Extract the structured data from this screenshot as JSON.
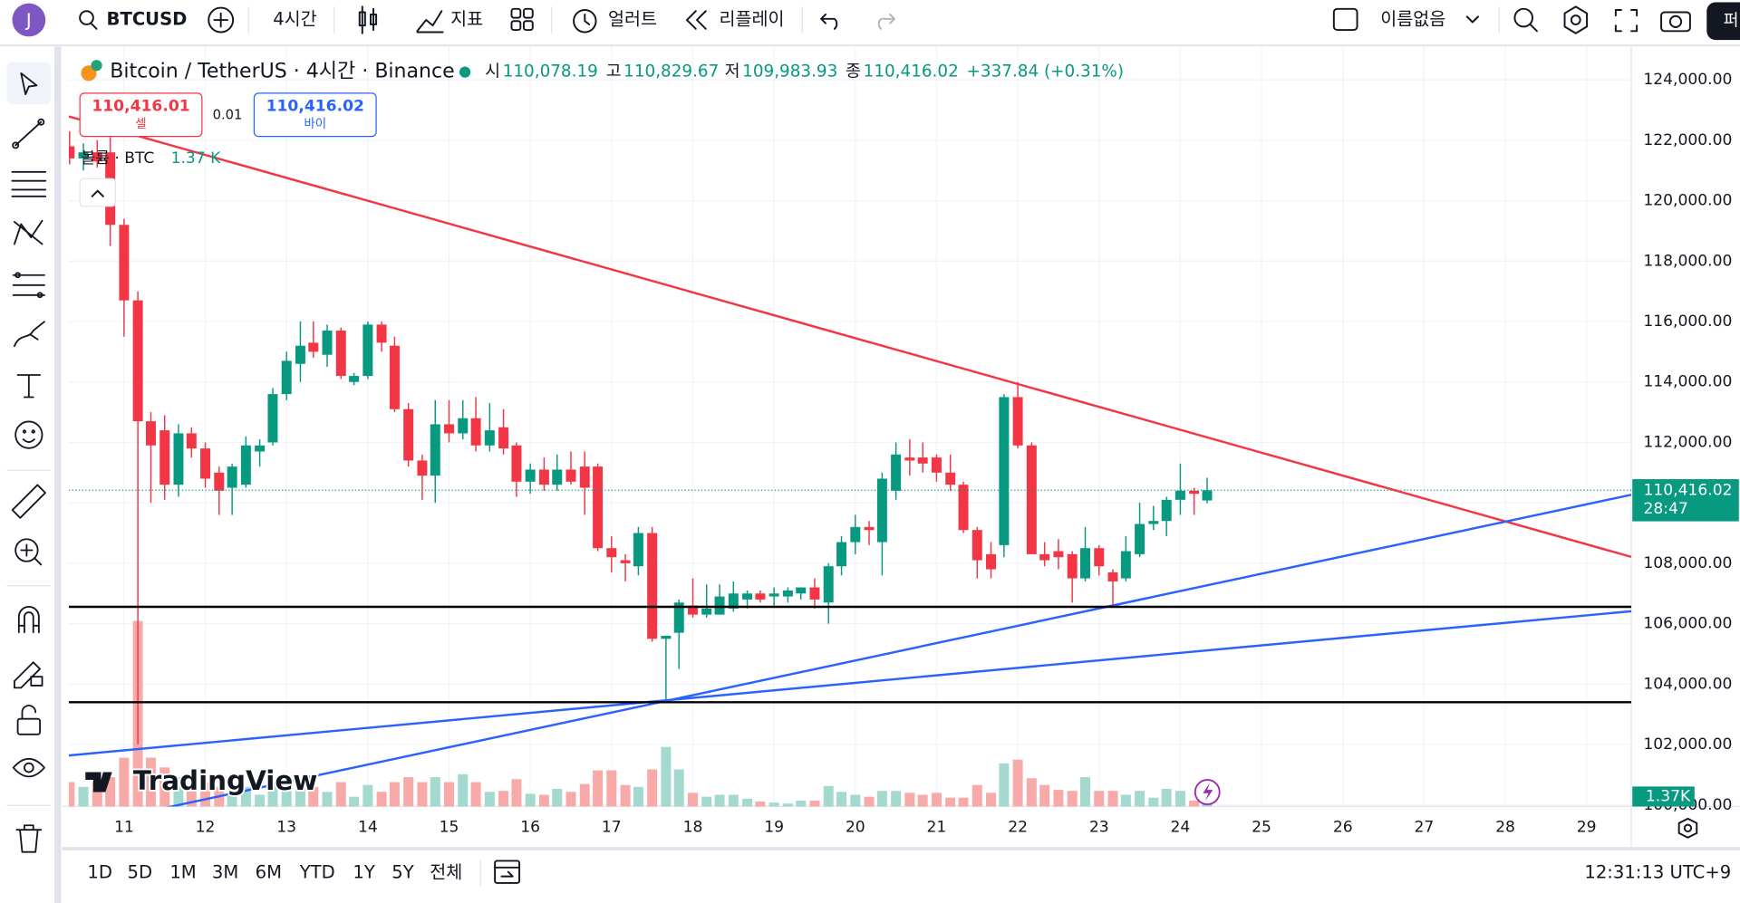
{
  "toolbar": {
    "avatar": "J",
    "symbol": "BTCUSD",
    "interval": "4시간",
    "indicators": "지표",
    "alerts": "얼러트",
    "replay": "리플레이",
    "layout_name": "이름없음",
    "publish": "퍼"
  },
  "chart_header": {
    "title": "Bitcoin / TetherUS · 4시간 · Binance",
    "open_label": "시",
    "open": "110,078.19",
    "high_label": "고",
    "high": "110,829.67",
    "low_label": "저",
    "low": "109,983.93",
    "close_label": "종",
    "close": "110,416.02",
    "change": "+337.84 (+0.31%)",
    "sell_price": "110,416.01",
    "sell": "셀",
    "spread": "0.01",
    "buy_price": "110,416.02",
    "buy": "바이",
    "volume_title": "볼륨 · BTC",
    "volume_value": "1.37 K",
    "logo": "TradingView"
  },
  "bottom_bar": {
    "ranges": [
      "1D",
      "5D",
      "1M",
      "3M",
      "6M",
      "YTD",
      "1Y",
      "5Y",
      "전체"
    ],
    "clock": "12:31:13 UTC+9"
  },
  "chart_data": {
    "type": "candlestick",
    "up_color": "#089981",
    "down_color": "#f23645",
    "volume_up_color": "#a3d9cf",
    "volume_down_color": "#f8aaa8",
    "grid": true,
    "x": [
      10.33,
      10.5,
      10.67,
      10.83,
      11,
      11.17,
      11.33,
      11.5,
      11.67,
      11.83,
      12,
      12.17,
      12.33,
      12.5,
      12.67,
      12.83,
      13,
      13.17,
      13.33,
      13.5,
      13.67,
      13.83,
      14,
      14.17,
      14.33,
      14.5,
      14.67,
      14.83,
      15,
      15.17,
      15.33,
      15.5,
      15.67,
      15.83,
      16,
      16.17,
      16.33,
      16.5,
      16.67,
      16.83,
      17,
      17.17,
      17.33,
      17.5,
      17.67,
      17.83,
      18,
      18.17,
      18.33,
      18.5,
      18.67,
      18.83,
      19,
      19.17,
      19.33,
      19.5,
      19.67,
      19.83,
      20,
      20.17,
      20.33,
      20.5,
      20.67,
      20.83,
      21,
      21.17,
      21.33,
      21.5,
      21.67,
      21.83,
      22,
      22.17,
      22.33,
      22.5,
      22.67,
      22.83,
      23,
      23.17,
      23.33,
      23.5,
      23.67,
      23.83,
      24,
      24.17,
      24.33
    ],
    "open": [
      121800,
      121400,
      121600,
      121600,
      119200,
      116700,
      112700,
      112400,
      110600,
      112300,
      111800,
      111000,
      110500,
      110600,
      111700,
      112000,
      113600,
      114600,
      115300,
      114900,
      115700,
      114000,
      114200,
      115900,
      115200,
      113100,
      111400,
      110900,
      112600,
      112300,
      112800,
      111900,
      112500,
      111900,
      110700,
      111100,
      110600,
      111100,
      111200,
      111200,
      108500,
      108100,
      107900,
      109000,
      105500,
      105700,
      106600,
      106300,
      106300,
      106500,
      106800,
      107000,
      106900,
      106900,
      107000,
      107200,
      106700,
      107900,
      108700,
      109200,
      108700,
      110400,
      111500,
      111500,
      111500,
      111000,
      110600,
      109100,
      108300,
      108600,
      113500,
      111900,
      108300,
      108400,
      108300,
      107500,
      108500,
      107700,
      107500,
      108300,
      109300,
      109400,
      110100,
      110400,
      110078.19
    ],
    "high": [
      122300,
      121900,
      122000,
      122100,
      119400,
      117000,
      113000,
      112900,
      112600,
      112500,
      112000,
      111200,
      111300,
      112200,
      112100,
      113800,
      115000,
      116000,
      116000,
      115900,
      115800,
      114300,
      116000,
      116000,
      115500,
      113300,
      111600,
      113400,
      113400,
      113400,
      113500,
      113300,
      113100,
      112000,
      111300,
      111500,
      111600,
      111700,
      111700,
      111300,
      108900,
      108300,
      109200,
      109200,
      105600,
      106800,
      107500,
      107300,
      107300,
      107400,
      107100,
      107100,
      107200,
      107200,
      107200,
      107500,
      108000,
      108900,
      109600,
      109400,
      111000,
      112000,
      112100,
      112000,
      111600,
      111600,
      110700,
      109200,
      108700,
      113600,
      114000,
      112000,
      108700,
      108800,
      108400,
      109200,
      108600,
      107800,
      108900,
      110000,
      109900,
      110200,
      111300,
      110500,
      110829.67
    ],
    "low": [
      121200,
      121000,
      121100,
      118500,
      115500,
      102000,
      110000,
      110100,
      110200,
      111500,
      110500,
      109600,
      109600,
      110500,
      111200,
      111900,
      113400,
      114000,
      114800,
      114500,
      114100,
      113900,
      114100,
      115000,
      113000,
      111200,
      110100,
      110000,
      112000,
      112100,
      111700,
      111700,
      111600,
      110200,
      110300,
      110400,
      110400,
      110600,
      109600,
      108400,
      107700,
      107400,
      107600,
      105400,
      103400,
      104500,
      106200,
      106200,
      106300,
      106400,
      106500,
      106700,
      106600,
      106700,
      106800,
      106500,
      106000,
      107600,
      108300,
      108600,
      107600,
      110100,
      110900,
      111000,
      110700,
      110400,
      109000,
      107500,
      107500,
      108200,
      111800,
      108300,
      107900,
      107800,
      106700,
      107400,
      107600,
      106600,
      107400,
      108200,
      109100,
      108900,
      109600,
      109600,
      109983.93
    ],
    "close": [
      121400,
      121600,
      121300,
      119200,
      116700,
      112700,
      111900,
      110600,
      112300,
      111800,
      110800,
      110400,
      111200,
      111900,
      111900,
      113600,
      114700,
      115200,
      115000,
      115700,
      114200,
      114200,
      115900,
      115300,
      113100,
      111400,
      110900,
      112600,
      112300,
      112800,
      111900,
      112400,
      111800,
      110700,
      111100,
      110600,
      111100,
      110700,
      110500,
      108500,
      108200,
      108000,
      109000,
      105500,
      105600,
      106700,
      106300,
      106500,
      106900,
      107000,
      107000,
      106800,
      107000,
      107100,
      107200,
      106800,
      107900,
      108700,
      109200,
      109100,
      110800,
      111600,
      111400,
      111300,
      111000,
      110600,
      109100,
      108100,
      107800,
      113500,
      111900,
      108300,
      108100,
      108200,
      107500,
      108500,
      107900,
      107400,
      108400,
      109300,
      109400,
      110100,
      110400,
      110300,
      110416.02
    ],
    "volume": [
      2.5,
      2,
      2.5,
      3,
      5,
      19,
      5,
      4,
      3,
      2,
      2.5,
      2,
      1.5,
      2,
      1.2,
      2.5,
      3,
      2.5,
      2,
      1.5,
      2.5,
      1,
      2.2,
      1.5,
      2.5,
      3,
      2.5,
      3,
      2.5,
      3.3,
      2.5,
      1.5,
      1.6,
      2.8,
      1.3,
      1.2,
      1.8,
      1.5,
      2.3,
      3.7,
      3.7,
      2.2,
      2,
      3.8,
      6.1,
      3.8,
      1.4,
      1,
      1.2,
      1.2,
      0.8,
      0.5,
      0.4,
      0.3,
      0.6,
      0.6,
      2.1,
      1.5,
      1.2,
      1,
      1.6,
      1.6,
      1.4,
      1.2,
      1.4,
      0.9,
      0.9,
      2.2,
      1.4,
      4.4,
      4.8,
      2.9,
      2.2,
      1.7,
      1.6,
      3,
      1.6,
      1.6,
      1.2,
      1.6,
      0.9,
      1.8,
      1.6,
      0.6,
      1.37
    ],
    "volume_ylim": [
      0,
      20
    ],
    "volume_last_label": "1.37K",
    "last_price": {
      "value": 110416.02,
      "label": "110,416.02"
    },
    "countdown": "28:47",
    "xlim": [
      10.32,
      29.55
    ],
    "xticks": [
      11,
      12,
      13,
      14,
      15,
      16,
      17,
      18,
      19,
      20,
      21,
      22,
      23,
      24,
      25,
      26,
      27,
      28,
      29
    ],
    "ylim": [
      99950,
      125100
    ],
    "yticks": [
      {
        "value": 100000,
        "label": "100,000.00"
      },
      {
        "value": 102000,
        "label": "102,000.00"
      },
      {
        "value": 104000,
        "label": "104,000.00"
      },
      {
        "value": 106000,
        "label": "106,000.00"
      },
      {
        "value": 108000,
        "label": "108,000.00"
      },
      {
        "value": 110000,
        "label": "110,000.00"
      },
      {
        "value": 112000,
        "label": "112,000.00"
      },
      {
        "value": 114000,
        "label": "114,000.00"
      },
      {
        "value": 116000,
        "label": "116,000.00"
      },
      {
        "value": 118000,
        "label": "118,000.00"
      },
      {
        "value": 120000,
        "label": "120,000.00"
      },
      {
        "value": 122000,
        "label": "122,000.00"
      },
      {
        "value": 124000,
        "label": "124,000.00"
      }
    ]
  }
}
